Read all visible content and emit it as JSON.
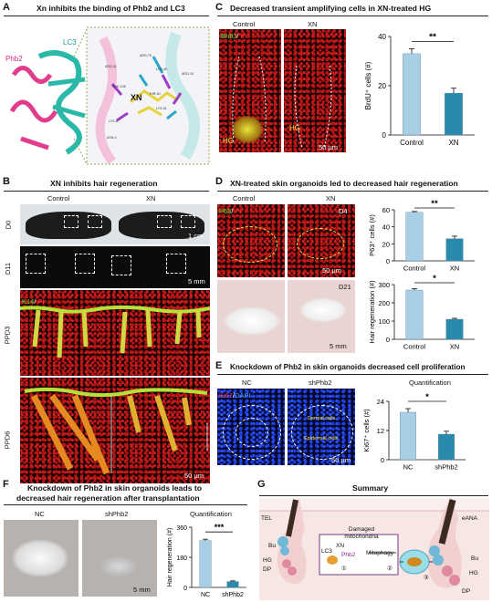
{
  "panels": {
    "A": {
      "letter": "A",
      "title": "Xn inhibits the binding of Phb2 and LC3",
      "phb2": "Phb2",
      "lc3": "LC3",
      "xn": "XN",
      "residues": [
        "ARG-11",
        "ARG-70",
        "LYS-49",
        "PHE-108",
        "THR-50",
        "LYS-51",
        "LYS-8",
        "ASN-4",
        "ARG-10"
      ]
    },
    "B": {
      "letter": "B",
      "title": "XN inhibits hair regeneration",
      "control": "Control",
      "xn": "XN",
      "rows": [
        "D0",
        "D11",
        "PPD3",
        "PPD6"
      ],
      "scale1": "1 cm",
      "scale2": "5 mm",
      "scale3": "50 μm",
      "stain_k14": "K14",
      "stain_sep": "/",
      "stain_pi": " PI"
    },
    "C": {
      "letter": "C",
      "title": "Decreased transient amplifying cells in XN-treated HG",
      "control": "Control",
      "xn": "XN",
      "stain_brdu": "BrdU",
      "stain_sep": "/",
      "stain_pi": " PI",
      "hg": "HG",
      "scale": "50 μm"
    },
    "D": {
      "letter": "D",
      "title": "XN-treated skin organoids led to decreased hair regeneration",
      "control": "Control",
      "xn": "XN",
      "stain_p63": "P63",
      "stain_sep": "/",
      "stain_pi": " PI",
      "d4": "D4",
      "d21": "D21",
      "scale1": "50 μm",
      "scale2": "5 mm"
    },
    "E": {
      "letter": "E",
      "title": "Knockdown of Phb2 in skin organoids decreased cell proliferation",
      "nc": "NC",
      "sh": "shPhb2",
      "quant": "Quantification",
      "stain_ki67": "Ki67",
      "stain_sep": "/",
      "stain_dapi": "DAPI",
      "dermal": "Dermal cells",
      "epidermal": "Epidermal cells",
      "scale": "50 μm"
    },
    "F": {
      "letter": "F",
      "title_line1": "Knockdown of Phb2 in skin organoids leads to",
      "title_line2": "decreased hair regeneration after transplantation",
      "nc": "NC",
      "sh": "shPhb2",
      "quant": "Quantification",
      "scale": "5 mm"
    },
    "G": {
      "letter": "G",
      "title": "Summary",
      "tel": "TEL",
      "eana": "eANA",
      "bu": "Bu",
      "hg": "HG",
      "dp": "DP",
      "dam1": "Damaged",
      "dam2": "mitochondria",
      "mitophagy": "Mitophagy",
      "lc3": "LC3",
      "xn": "XN",
      "phb2": "Phb2",
      "step1": "①",
      "step2": "②",
      "step3": "③"
    }
  },
  "chart_data": [
    {
      "type": "bar",
      "panel": "C",
      "categories": [
        "Control",
        "XN"
      ],
      "values": [
        33,
        17
      ],
      "errors": [
        2,
        2
      ],
      "ylabel": "BrdU⁺ cells (#)",
      "ylim": [
        0,
        40
      ],
      "yticks": [
        0,
        20,
        40
      ],
      "significance": "**",
      "colors": [
        "#a8cfe6",
        "#2a8aab"
      ]
    },
    {
      "type": "bar",
      "panel": "D-top",
      "categories": [
        "Control",
        "XN"
      ],
      "values": [
        57,
        26
      ],
      "errors": [
        1,
        3
      ],
      "ylabel": "P63⁺ cells (#)",
      "ylim": [
        0,
        60
      ],
      "yticks": [
        0,
        20,
        40,
        60
      ],
      "significance": "**",
      "colors": [
        "#a8cfe6",
        "#2a8aab"
      ]
    },
    {
      "type": "bar",
      "panel": "D-bottom",
      "categories": [
        "Control",
        "XN"
      ],
      "values": [
        270,
        110
      ],
      "errors": [
        8,
        5
      ],
      "ylabel": "Hair regeneration (#)",
      "ylim": [
        0,
        300
      ],
      "yticks": [
        0,
        100,
        200,
        300
      ],
      "significance": "*",
      "colors": [
        "#a8cfe6",
        "#2a8aab"
      ]
    },
    {
      "type": "bar",
      "panel": "E",
      "categories": [
        "NC",
        "shPhb2"
      ],
      "values": [
        19.5,
        10.5
      ],
      "errors": [
        1.5,
        1.2
      ],
      "ylabel": "Ki67⁺ cells (#)",
      "ylim": [
        0,
        24
      ],
      "yticks": [
        0,
        12,
        24
      ],
      "significance": "*",
      "colors": [
        "#a8cfe6",
        "#2a8aab"
      ]
    },
    {
      "type": "bar",
      "panel": "F",
      "categories": [
        "NC",
        "shPhb2"
      ],
      "values": [
        280,
        35
      ],
      "errors": [
        8,
        4
      ],
      "ylabel": "Hair regeneration (#)",
      "ylim": [
        0,
        360
      ],
      "yticks": [
        0,
        180,
        360
      ],
      "significance": "***",
      "colors": [
        "#a8cfe6",
        "#2a8aab"
      ]
    }
  ]
}
